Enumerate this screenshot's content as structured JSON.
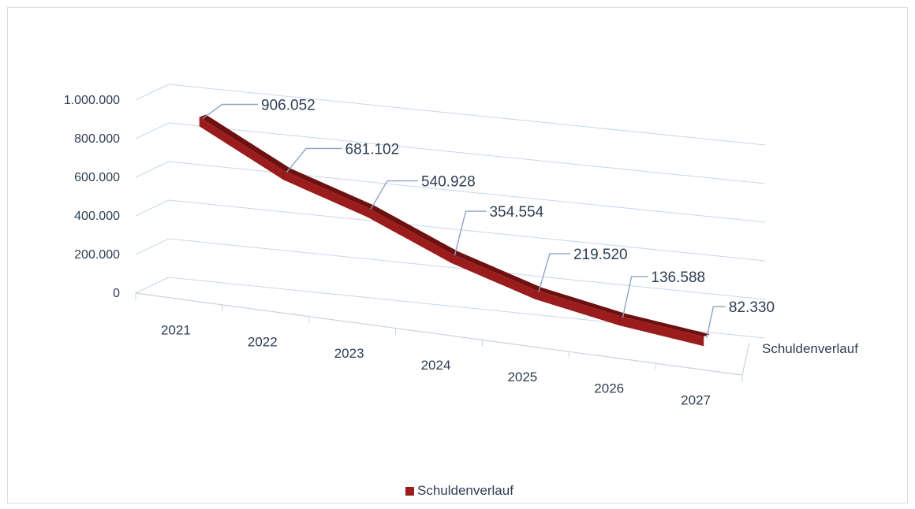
{
  "chart_data": {
    "type": "line",
    "style": "3d-ribbon",
    "categories": [
      "2021",
      "2022",
      "2023",
      "2024",
      "2025",
      "2026",
      "2027"
    ],
    "series": [
      {
        "name": "Schuldenverlauf",
        "values": [
          906052,
          681102,
          540928,
          354554,
          219520,
          136588,
          82330
        ],
        "value_labels": [
          "906.052",
          "681.102",
          "540.928",
          "354.554",
          "219.520",
          "136.588",
          "82.330"
        ],
        "color": "#9b1c1c"
      }
    ],
    "y_ticks": [
      {
        "value": 0,
        "label": "0"
      },
      {
        "value": 200000,
        "label": "200.000"
      },
      {
        "value": 400000,
        "label": "400.000"
      },
      {
        "value": 600000,
        "label": "600.000"
      },
      {
        "value": 800000,
        "label": "800.000"
      },
      {
        "value": 1000000,
        "label": "1.000.000"
      }
    ],
    "ylim": [
      0,
      1000000
    ],
    "depth_axis_label": "Schuldenverlauf",
    "legend": {
      "position": "bottom",
      "label": "Schuldenverlauf"
    },
    "grid": true,
    "colors": {
      "series": "#9b1c1c",
      "series_dark": "#6e1010",
      "grid": "#c9d7e8",
      "text": "#2f3e52"
    }
  }
}
